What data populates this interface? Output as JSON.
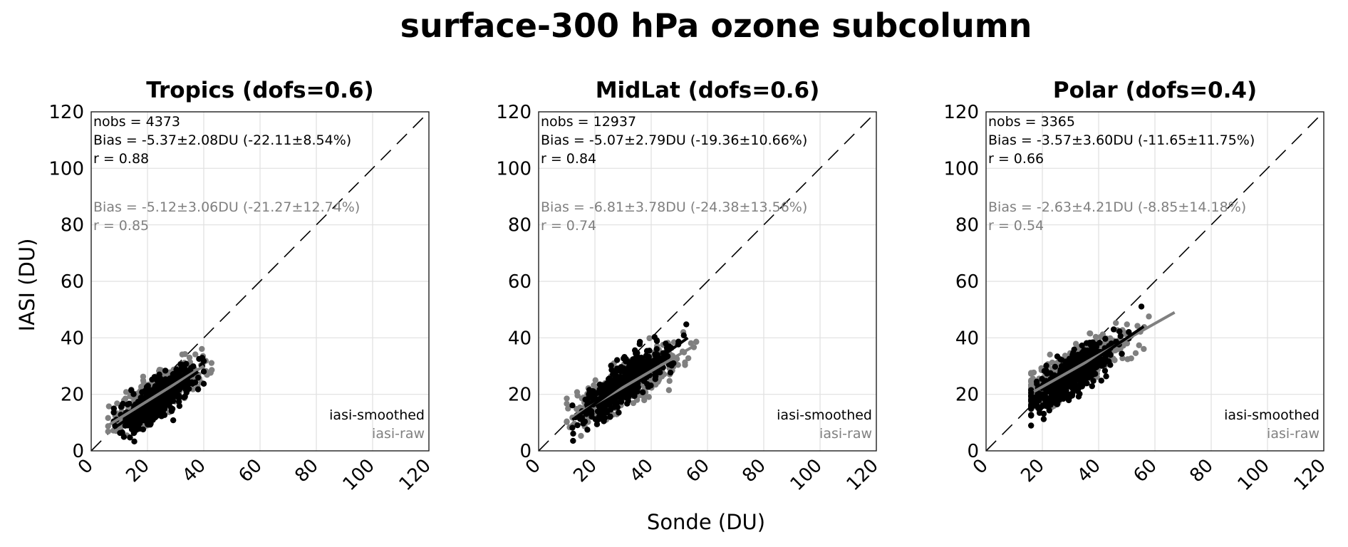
{
  "figure": {
    "title": "surface-300 hPa ozone subcolumn",
    "xlabel": "Sonde (DU)",
    "ylabel": "IASI (DU)"
  },
  "colors": {
    "smoothed": "#000000",
    "raw": "#808080",
    "grid": "#e0e0e0",
    "one_to_one": "#000000"
  },
  "chart_data": [
    {
      "type": "scatter",
      "title": "Tropics (dofs=0.6)",
      "xlim": [
        0,
        120
      ],
      "ylim": [
        0,
        120
      ],
      "xticks": [
        0,
        20,
        40,
        60,
        80,
        100,
        120
      ],
      "yticks": [
        0,
        20,
        40,
        60,
        80,
        100,
        120
      ],
      "grid": true,
      "one_to_one_line": true,
      "stats_smoothed": [
        "nobs = 4373",
        "Bias = -5.37±2.08DU (-22.11±8.54%)",
        "r = 0.88"
      ],
      "stats_raw": [
        "Bias = -5.12±3.06DU (-21.27±12.74%)",
        "r = 0.85"
      ],
      "legend": [
        "iasi-smoothed",
        "iasi-raw"
      ],
      "legend_position": "bottom-right",
      "series": [
        {
          "name": "iasi-raw",
          "color": "#808080",
          "x_range": [
            6,
            44
          ],
          "center": [
            24,
            21
          ],
          "fit": [
            [
              6,
              9
            ],
            [
              40,
              30
            ]
          ]
        },
        {
          "name": "iasi-smoothed",
          "color": "#000000",
          "x_range": [
            8,
            40
          ],
          "center": [
            24,
            19
          ],
          "fit": [
            [
              8,
              8
            ],
            [
              38,
              28
            ]
          ]
        }
      ]
    },
    {
      "type": "scatter",
      "title": "MidLat (dofs=0.6)",
      "xlim": [
        0,
        120
      ],
      "ylim": [
        0,
        120
      ],
      "xticks": [
        0,
        20,
        40,
        60,
        80,
        100,
        120
      ],
      "yticks": [
        0,
        20,
        40,
        60,
        80,
        100,
        120
      ],
      "grid": true,
      "one_to_one_line": true,
      "stats_smoothed": [
        "nobs = 12937",
        "Bias = -5.07±2.79DU (-19.36±10.66%)",
        "r = 0.84"
      ],
      "stats_raw": [
        "Bias = -6.81±3.78DU (-24.38±13.56%)",
        "r = 0.74"
      ],
      "legend": [
        "iasi-smoothed",
        "iasi-raw"
      ],
      "legend_position": "bottom-right",
      "series": [
        {
          "name": "iasi-raw",
          "color": "#808080",
          "x_range": [
            10,
            56
          ],
          "center": [
            31,
            25
          ],
          "fit": [
            [
              12,
              12
            ],
            [
              55,
              37
            ]
          ]
        },
        {
          "name": "iasi-smoothed",
          "color": "#000000",
          "x_range": [
            12,
            53
          ],
          "center": [
            31,
            26
          ],
          "fit": [
            [
              12,
              11
            ],
            [
              53,
              40
            ]
          ]
        }
      ]
    },
    {
      "type": "scatter",
      "title": "Polar (dofs=0.4)",
      "xlim": [
        0,
        120
      ],
      "ylim": [
        0,
        120
      ],
      "xticks": [
        0,
        20,
        40,
        60,
        80,
        100,
        120
      ],
      "yticks": [
        0,
        20,
        40,
        60,
        80,
        100,
        120
      ],
      "grid": true,
      "one_to_one_line": true,
      "stats_smoothed": [
        "nobs = 3365",
        "Bias = -3.57±3.60DU (-11.65±11.75%)",
        "r = 0.66"
      ],
      "stats_raw": [
        "Bias = -2.63±4.21DU (-8.85±14.18%)",
        "r = 0.54"
      ],
      "legend": [
        "iasi-smoothed",
        "iasi-raw"
      ],
      "legend_position": "bottom-right",
      "series": [
        {
          "name": "iasi-raw",
          "color": "#808080",
          "x_range": [
            16,
            68
          ],
          "center": [
            30,
            27
          ],
          "fit": [
            [
              17,
              21
            ],
            [
              67,
              49
            ]
          ]
        },
        {
          "name": "iasi-smoothed",
          "color": "#000000",
          "x_range": [
            16,
            56
          ],
          "center": [
            30,
            27
          ],
          "fit": [
            [
              16,
              17
            ],
            [
              56,
              44
            ]
          ]
        }
      ]
    }
  ]
}
